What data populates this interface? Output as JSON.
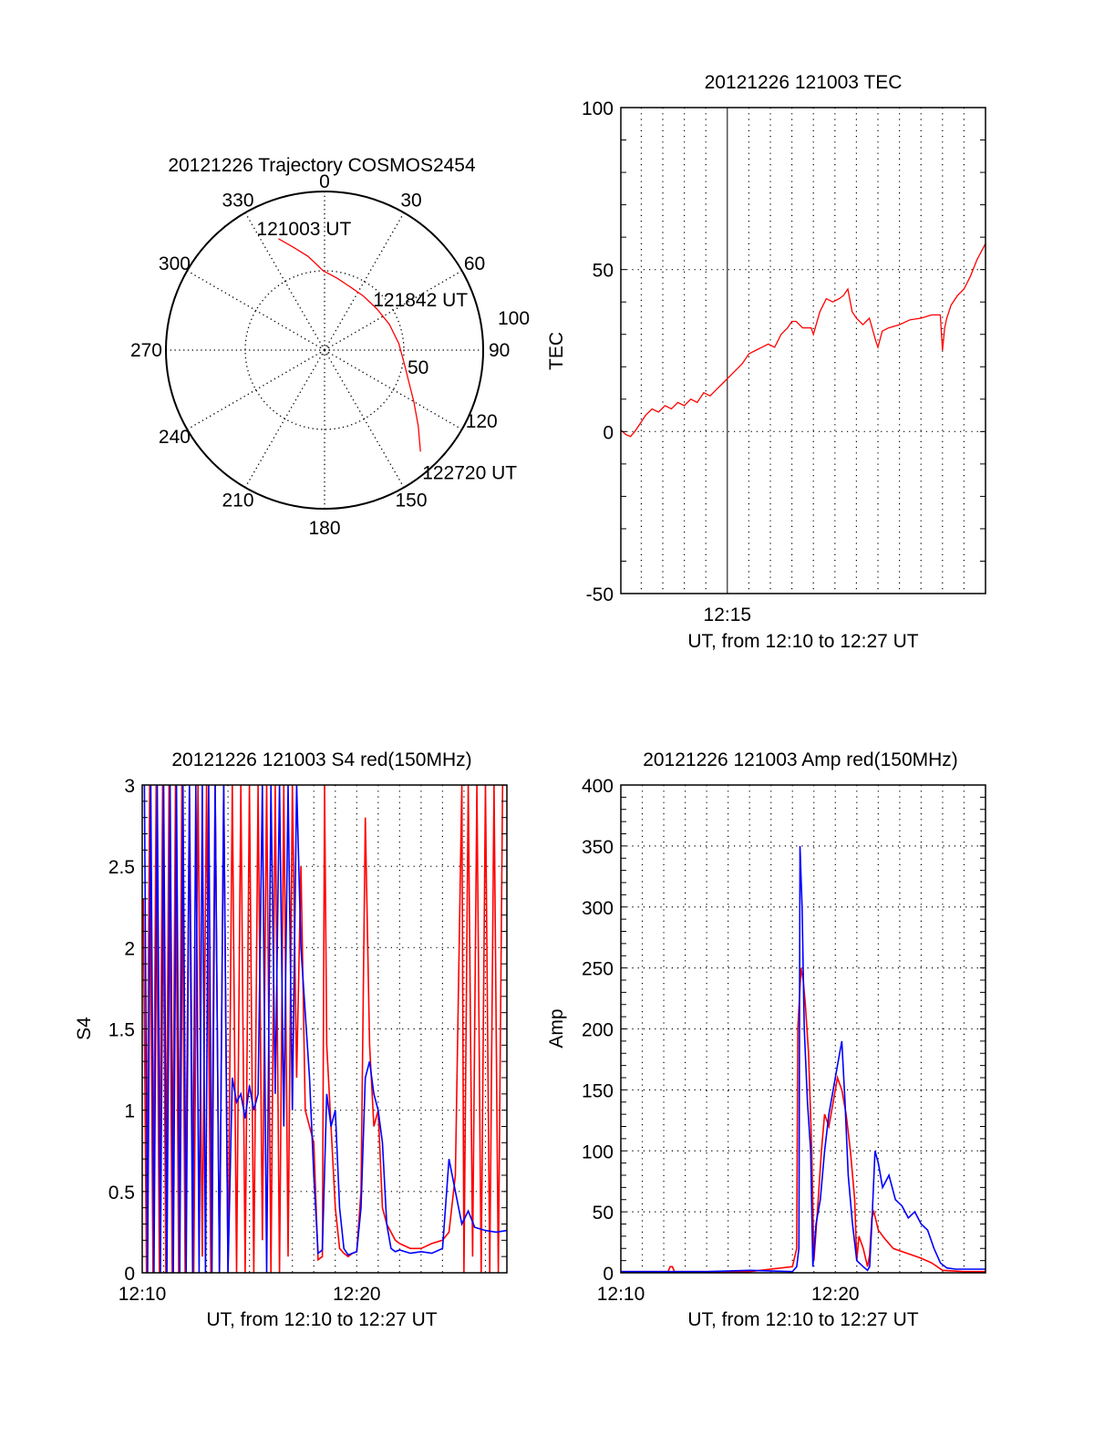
{
  "chart_data": [
    {
      "id": "trajectory",
      "type": "polar",
      "title": "20121226 Trajectory COSMOS2454",
      "angle_ticks": [
        "0",
        "30",
        "60",
        "90",
        "120",
        "150",
        "180",
        "210",
        "240",
        "270",
        "300",
        "330"
      ],
      "angle_values": [
        0,
        30,
        60,
        90,
        120,
        150,
        180,
        210,
        240,
        270,
        300,
        330
      ],
      "radial_ticks": [
        "50",
        "100"
      ],
      "radial_values": [
        50,
        100
      ],
      "rmax": 100,
      "grid": true,
      "series": [
        {
          "name": "trajectory",
          "color": "#ff0000",
          "azimuth": [
            337.5,
            343,
            350,
            359,
            10,
            22,
            35.6,
            52,
            68.5,
            85,
            99.7,
            111,
            120,
            129,
            136.6
          ],
          "radius": [
            76,
            68,
            60,
            50,
            46,
            43,
            42,
            42,
            44,
            47,
            51,
            57,
            65,
            76,
            88
          ]
        }
      ],
      "annotations": [
        {
          "text": "121003 UT",
          "azimuth": 337.5,
          "radius": 76
        },
        {
          "text": "121842 UT",
          "azimuth": 68.5,
          "radius": 44
        },
        {
          "text": "122720 UT",
          "azimuth": 136.6,
          "radius": 88
        }
      ]
    },
    {
      "id": "tec",
      "type": "line",
      "title": "20121226 121003 TEC",
      "xlabel": "UT, from 12:10 to 12:27 UT",
      "ylabel": "TEC",
      "x_units": "minutes after 12:10",
      "xlim": [
        0.05,
        17
      ],
      "ylim": [
        -50,
        100
      ],
      "yticks": [
        -50,
        0,
        50,
        100
      ],
      "ytick_labels": [
        "-50",
        "0",
        "50",
        "100"
      ],
      "xticks": [
        5
      ],
      "xtick_labels": [
        "12:15"
      ],
      "grid": true,
      "series": [
        {
          "name": "TEC",
          "color": "#ff0000",
          "x": [
            0.05,
            0.3,
            0.5,
            0.7,
            0.9,
            1.2,
            1.5,
            1.8,
            2.1,
            2.4,
            2.7,
            3.0,
            3.3,
            3.6,
            3.9,
            4.2,
            4.5,
            4.8,
            5.1,
            5.4,
            5.7,
            6.0,
            6.3,
            6.6,
            6.9,
            7.2,
            7.5,
            7.8,
            8.0,
            8.2,
            8.5,
            8.9,
            9.0,
            9.3,
            9.6,
            9.9,
            10.2,
            10.4,
            10.6,
            10.8,
            11.0,
            11.3,
            11.6,
            11.9,
            12.0,
            12.2,
            12.5,
            13.0,
            13.5,
            14.0,
            14.5,
            14.9,
            15.0,
            15.1,
            15.2,
            15.4,
            15.7,
            16.0,
            16.3,
            16.6,
            17.0
          ],
          "y": [
            0.5,
            -1,
            -1.5,
            0,
            2,
            5,
            7,
            6,
            8,
            7,
            9,
            8,
            10,
            9,
            12,
            11,
            13,
            15,
            17,
            19,
            21,
            24,
            25,
            26,
            27,
            26,
            30,
            32,
            34,
            34,
            32,
            32,
            30,
            37,
            41,
            40,
            41,
            42,
            44,
            37,
            35,
            33,
            35,
            28,
            26,
            31,
            32,
            33,
            34.5,
            35,
            36,
            36,
            25,
            32,
            35,
            39,
            42,
            44,
            48,
            53,
            58
          ]
        }
      ]
    },
    {
      "id": "s4",
      "type": "line",
      "title": "20121226 121003 S4 red(150MHz)",
      "xlabel": "UT, from 12:10 to 12:27 UT",
      "ylabel": "S4",
      "x_units": "minutes after 12:10",
      "xlim": [
        0,
        17
      ],
      "ylim": [
        0,
        3
      ],
      "yticks": [
        0,
        0.5,
        1,
        1.5,
        2,
        2.5,
        3
      ],
      "ytick_labels": [
        "0",
        "0.5",
        "1",
        "1.5",
        "2",
        "2.5",
        "3"
      ],
      "xticks": [
        0,
        10
      ],
      "xtick_labels": [
        "12:10",
        "12:20"
      ],
      "grid": true,
      "series": [
        {
          "name": "red",
          "color": "#ff0000",
          "x": [
            0.05,
            0.2,
            0.35,
            0.5,
            0.65,
            0.8,
            0.95,
            1.1,
            1.25,
            1.4,
            1.55,
            1.7,
            1.85,
            2.0,
            2.2,
            2.4,
            2.6,
            2.8,
            3.0,
            3.2,
            3.4,
            3.6,
            3.8,
            4.0,
            4.2,
            4.4,
            4.6,
            4.8,
            5.0,
            5.2,
            5.4,
            5.6,
            5.8,
            6.0,
            6.2,
            6.4,
            6.6,
            6.8,
            7.0,
            7.2,
            7.4,
            7.6,
            7.8,
            8.0,
            8.2,
            8.4,
            8.5,
            8.6,
            8.8,
            9.0,
            9.2,
            9.4,
            9.6,
            9.8,
            10.0,
            10.2,
            10.4,
            10.6,
            10.8,
            11.0,
            11.2,
            11.4,
            11.6,
            11.8,
            12.0,
            12.5,
            13.0,
            13.5,
            14.0,
            14.3,
            14.6,
            14.9,
            15.0,
            15.2,
            15.4,
            15.6,
            15.8,
            16.0,
            16.2,
            16.4,
            16.6,
            16.8,
            17.0
          ],
          "y": [
            2.3,
            0,
            3,
            0,
            3,
            0,
            3,
            0,
            3,
            0,
            3,
            0,
            3,
            0,
            3,
            0,
            3,
            0.1,
            3,
            0,
            3,
            0,
            3,
            0,
            3,
            0,
            3,
            0,
            3,
            0,
            3,
            0.2,
            3,
            0,
            3,
            0,
            3,
            0.1,
            3,
            1.2,
            2.5,
            1.0,
            0.9,
            0.8,
            0.08,
            0.1,
            3,
            1.4,
            0.9,
            0.4,
            0.15,
            0.12,
            0.1,
            0.12,
            0.13,
            0.5,
            2.8,
            1.4,
            0.9,
            1.0,
            0.4,
            0.3,
            0.25,
            0.2,
            0.18,
            0.15,
            0.15,
            0.18,
            0.2,
            0.25,
            0.6,
            3,
            0,
            3,
            0.1,
            3,
            0,
            3,
            0,
            3,
            0,
            3,
            3
          ]
        },
        {
          "name": "blue",
          "color": "#0000ff",
          "x": [
            0.1,
            0.25,
            0.4,
            0.55,
            0.7,
            0.85,
            1.0,
            1.15,
            1.3,
            1.45,
            1.6,
            1.75,
            1.9,
            2.05,
            2.2,
            2.35,
            2.5,
            2.65,
            2.8,
            2.95,
            3.1,
            3.25,
            3.4,
            3.6,
            3.8,
            4.0,
            4.2,
            4.4,
            4.6,
            4.8,
            5.0,
            5.2,
            5.4,
            5.6,
            5.8,
            6.0,
            6.2,
            6.4,
            6.6,
            6.8,
            7.0,
            7.2,
            7.4,
            7.6,
            7.8,
            8.0,
            8.2,
            8.4,
            8.6,
            8.8,
            9.0,
            9.2,
            9.4,
            9.6,
            9.8,
            10.0,
            10.2,
            10.4,
            10.6,
            10.8,
            11.0,
            11.2,
            11.4,
            11.6,
            11.8,
            12.0,
            12.5,
            13.0,
            13.5,
            14.0,
            14.3,
            14.6,
            14.9,
            15.2,
            15.5,
            16.0,
            16.5,
            17.0
          ],
          "y": [
            3,
            0,
            3,
            0,
            3,
            0,
            3,
            0,
            3,
            0,
            3,
            0,
            3,
            0,
            3,
            0,
            3,
            0,
            3,
            0,
            3,
            0,
            3,
            0,
            3,
            0,
            1.2,
            1.05,
            1.1,
            0.95,
            1.15,
            1.0,
            1.1,
            3,
            0,
            3,
            1.1,
            3,
            0.9,
            3,
            1.0,
            3,
            2.0,
            1.6,
            1.2,
            0.6,
            0.12,
            0.14,
            1.1,
            0.9,
            1.0,
            0.4,
            0.15,
            0.11,
            0.12,
            0.13,
            0.4,
            1.2,
            1.3,
            1.1,
            1.0,
            0.8,
            0.3,
            0.15,
            0.13,
            0.14,
            0.12,
            0.13,
            0.12,
            0.15,
            0.7,
            0.5,
            0.3,
            0.38,
            0.28,
            0.26,
            0.25,
            0.26
          ]
        }
      ]
    },
    {
      "id": "amp",
      "type": "line",
      "title": "20121226 121003 Amp red(150MHz)",
      "xlabel": "UT, from 12:10 to 12:27 UT",
      "ylabel": "Amp",
      "x_units": "minutes after 12:10",
      "xlim": [
        0,
        17
      ],
      "ylim": [
        0,
        400
      ],
      "yticks": [
        0,
        50,
        100,
        150,
        200,
        250,
        300,
        350,
        400
      ],
      "ytick_labels": [
        "0",
        "50",
        "100",
        "150",
        "200",
        "250",
        "300",
        "350",
        "400"
      ],
      "xticks": [
        0,
        10
      ],
      "xtick_labels": [
        "12:10",
        "12:20"
      ],
      "grid": true,
      "series": [
        {
          "name": "red",
          "color": "#ff0000",
          "x": [
            0,
            2.2,
            2.3,
            2.4,
            2.5,
            4,
            6,
            8.0,
            8.2,
            8.25,
            8.4,
            8.5,
            8.6,
            8.75,
            8.9,
            9.0,
            9.2,
            9.35,
            9.5,
            9.7,
            9.9,
            10.1,
            10.3,
            10.5,
            10.7,
            10.9,
            11.0,
            11.1,
            11.3,
            11.5,
            11.6,
            11.7,
            11.8,
            12.0,
            12.3,
            12.7,
            13.0,
            13.5,
            14.0,
            14.5,
            15.0,
            16.0,
            17.0
          ],
          "y": [
            1,
            1,
            5,
            5,
            1,
            1,
            1,
            5,
            20,
            200,
            250,
            240,
            220,
            180,
            100,
            10,
            60,
            100,
            130,
            120,
            140,
            160,
            150,
            130,
            100,
            60,
            10,
            30,
            20,
            5,
            15,
            45,
            50,
            35,
            28,
            20,
            18,
            15,
            12,
            8,
            2,
            1,
            1
          ]
        },
        {
          "name": "blue",
          "color": "#0000ff",
          "x": [
            0,
            4,
            6,
            8.0,
            8.2,
            8.3,
            8.35,
            8.45,
            8.55,
            8.7,
            8.85,
            8.95,
            9.1,
            9.3,
            9.5,
            9.7,
            9.9,
            10.1,
            10.3,
            10.45,
            10.6,
            10.8,
            11.0,
            11.3,
            11.5,
            11.6,
            11.7,
            11.85,
            12.0,
            12.2,
            12.5,
            12.8,
            13.1,
            13.4,
            13.7,
            14.0,
            14.3,
            14.6,
            14.9,
            15.2,
            15.6,
            16.0,
            16.5,
            17.0
          ],
          "y": [
            1,
            1,
            2,
            1,
            5,
            20,
            350,
            300,
            200,
            140,
            100,
            5,
            40,
            60,
            100,
            130,
            150,
            170,
            190,
            140,
            80,
            40,
            10,
            5,
            2,
            5,
            40,
            100,
            90,
            70,
            80,
            60,
            55,
            45,
            50,
            40,
            35,
            20,
            8,
            4,
            3,
            3,
            3,
            3
          ]
        }
      ]
    }
  ]
}
